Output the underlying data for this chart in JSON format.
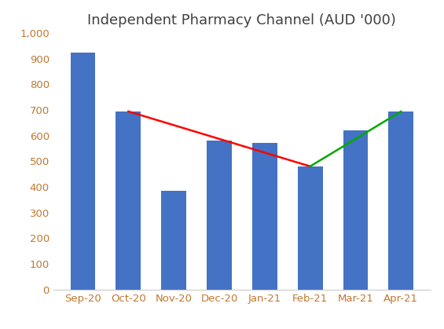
{
  "categories": [
    "Sep-20",
    "Oct-20",
    "Nov-20",
    "Dec-20",
    "Jan-21",
    "Feb-21",
    "Mar-21",
    "Apr-21"
  ],
  "values": [
    922,
    694,
    385,
    580,
    570,
    480,
    620,
    694
  ],
  "bar_color": "#4472C4",
  "title": "Independent Pharmacy Channel (AUD '000)",
  "title_fontsize": 13,
  "title_color": "#404040",
  "ylim": [
    0,
    1000
  ],
  "yticks": [
    0,
    100,
    200,
    300,
    400,
    500,
    600,
    700,
    800,
    900,
    1000
  ],
  "ytick_labels": [
    "0",
    "100",
    "200",
    "300",
    "400",
    "500",
    "600",
    "700",
    "800",
    "900",
    "1,000"
  ],
  "red_line_x": [
    1,
    5
  ],
  "red_line_y": [
    694,
    480
  ],
  "green_line_x": [
    5,
    7
  ],
  "green_line_y": [
    480,
    694
  ],
  "red_color": "#FF0000",
  "green_color": "#00AA00",
  "line_width": 1.8,
  "background_color": "#FFFFFF",
  "bar_edge_color": "none",
  "tick_label_color": "#C07830",
  "tick_fontsize": 9.5,
  "bar_width": 0.55
}
